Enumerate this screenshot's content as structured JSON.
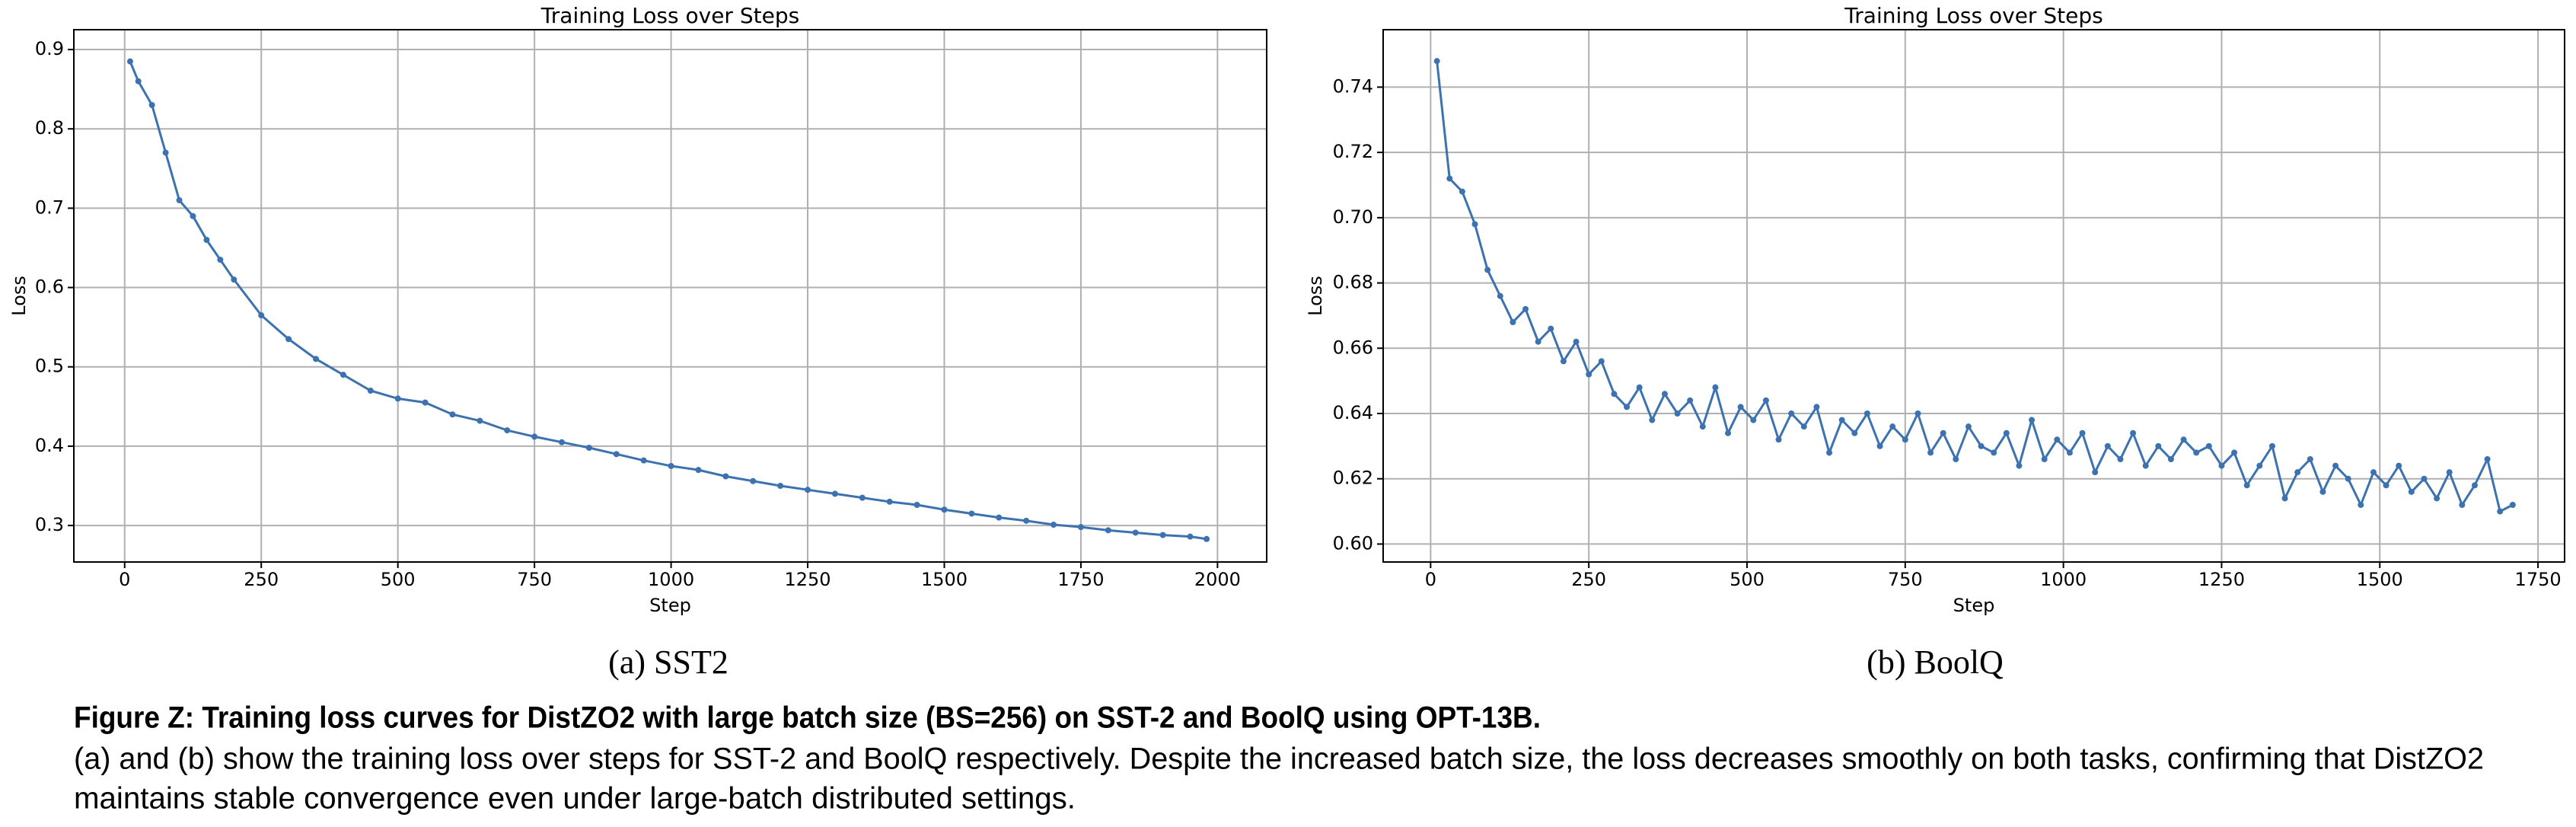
{
  "chart_data": [
    {
      "type": "line",
      "title": "Training Loss over Steps",
      "xlabel": "Step",
      "ylabel": "Loss",
      "caption": "(a) SST2",
      "x": [
        10,
        25,
        50,
        75,
        100,
        125,
        150,
        175,
        200,
        250,
        300,
        350,
        400,
        450,
        500,
        550,
        600,
        650,
        700,
        750,
        800,
        850,
        900,
        950,
        1000,
        1050,
        1100,
        1150,
        1200,
        1250,
        1300,
        1350,
        1400,
        1450,
        1500,
        1550,
        1600,
        1650,
        1700,
        1750,
        1800,
        1850,
        1900,
        1950,
        1980
      ],
      "values": [
        0.885,
        0.86,
        0.83,
        0.77,
        0.71,
        0.69,
        0.66,
        0.635,
        0.61,
        0.565,
        0.535,
        0.51,
        0.49,
        0.47,
        0.46,
        0.455,
        0.44,
        0.432,
        0.42,
        0.412,
        0.405,
        0.398,
        0.39,
        0.382,
        0.375,
        0.37,
        0.362,
        0.356,
        0.35,
        0.345,
        0.34,
        0.335,
        0.33,
        0.326,
        0.32,
        0.315,
        0.31,
        0.306,
        0.301,
        0.298,
        0.294,
        0.291,
        0.288,
        0.286,
        0.283
      ],
      "color": "#3d72b0",
      "xlim": [
        -93,
        2090
      ],
      "ylim": [
        0.254,
        0.925
      ],
      "xticks": [
        0,
        250,
        500,
        750,
        1000,
        1250,
        1500,
        1750,
        2000
      ],
      "yticks": [
        0.3,
        0.4,
        0.5,
        0.6,
        0.7,
        0.8,
        0.9
      ],
      "grid": true
    },
    {
      "type": "line",
      "title": "Training Loss over Steps",
      "xlabel": "Step",
      "ylabel": "Loss",
      "caption": "(b) BoolQ",
      "x": [
        10,
        30,
        50,
        70,
        90,
        110,
        130,
        150,
        170,
        190,
        210,
        230,
        250,
        270,
        290,
        310,
        330,
        350,
        370,
        390,
        410,
        430,
        450,
        470,
        490,
        510,
        530,
        550,
        570,
        590,
        610,
        630,
        650,
        670,
        690,
        710,
        730,
        750,
        770,
        790,
        810,
        830,
        850,
        870,
        890,
        910,
        930,
        950,
        970,
        990,
        1010,
        1030,
        1050,
        1070,
        1090,
        1110,
        1130,
        1150,
        1170,
        1190,
        1210,
        1230,
        1250,
        1270,
        1290,
        1310,
        1330,
        1350,
        1370,
        1390,
        1410,
        1430,
        1450,
        1470,
        1490,
        1510,
        1530,
        1550,
        1570,
        1590,
        1610,
        1630,
        1650,
        1670,
        1690,
        1710
      ],
      "values": [
        0.748,
        0.712,
        0.708,
        0.698,
        0.684,
        0.676,
        0.668,
        0.672,
        0.662,
        0.666,
        0.656,
        0.662,
        0.652,
        0.656,
        0.646,
        0.642,
        0.648,
        0.638,
        0.646,
        0.64,
        0.644,
        0.636,
        0.648,
        0.634,
        0.642,
        0.638,
        0.644,
        0.632,
        0.64,
        0.636,
        0.642,
        0.628,
        0.638,
        0.634,
        0.64,
        0.63,
        0.636,
        0.632,
        0.64,
        0.628,
        0.634,
        0.626,
        0.636,
        0.63,
        0.628,
        0.634,
        0.624,
        0.638,
        0.626,
        0.632,
        0.628,
        0.634,
        0.622,
        0.63,
        0.626,
        0.634,
        0.624,
        0.63,
        0.626,
        0.632,
        0.628,
        0.63,
        0.624,
        0.628,
        0.618,
        0.624,
        0.63,
        0.614,
        0.622,
        0.626,
        0.616,
        0.624,
        0.62,
        0.612,
        0.622,
        0.618,
        0.624,
        0.616,
        0.62,
        0.614,
        0.622,
        0.612,
        0.618,
        0.626,
        0.61,
        0.612
      ],
      "color": "#3d72b0",
      "xlim": [
        -75,
        1792
      ],
      "ylim": [
        0.5945,
        0.7576
      ],
      "xticks": [
        0,
        250,
        500,
        750,
        1000,
        1250,
        1500,
        1750
      ],
      "yticks": [
        {
          "value": 0.6,
          "label": "0.60"
        },
        0.62,
        0.64,
        0.66,
        0.68,
        {
          "value": 0.7,
          "label": "0.70"
        },
        0.72,
        0.74
      ],
      "grid": true
    }
  ],
  "figure_caption": {
    "title": "Figure Z: Training loss curves for DistZO2 with large batch size (BS=256) on SST-2 and BoolQ using OPT-13B.",
    "lines": [
      "(a) and (b) show the training loss over steps for SST-2 and BoolQ respectively. Despite the increased batch size, the loss decreases smoothly on both tasks, confirming that DistZO2",
      "maintains stable convergence even under large-batch distributed settings."
    ]
  }
}
